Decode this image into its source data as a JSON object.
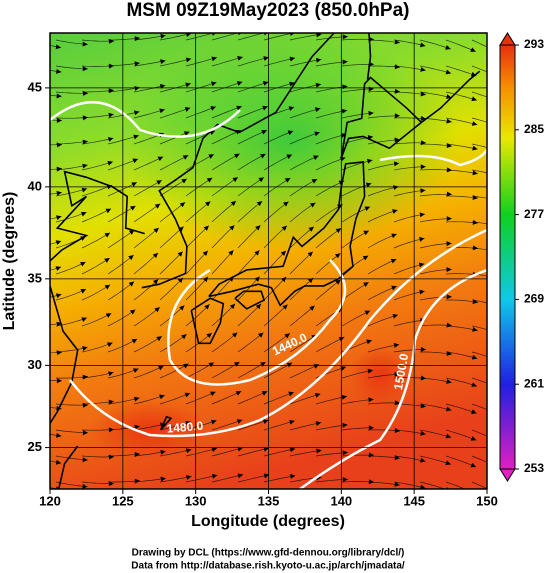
{
  "title": "MSM 09Z19May2023 (850.0hPa)",
  "x_axis": {
    "label": "Longitude (degrees)",
    "lim": [
      120,
      150
    ],
    "ticks": [
      120,
      125,
      130,
      135,
      140,
      145,
      150
    ]
  },
  "y_axis": {
    "label": "Latitude  (degrees)",
    "lim": [
      22.4,
      47.6
    ],
    "ticks": [
      25,
      30,
      35,
      40,
      45
    ]
  },
  "colorbar": {
    "lim": [
      253,
      293
    ],
    "ticks": [
      253,
      261,
      269,
      277,
      285,
      293
    ]
  },
  "contour_labels": [
    "1440.0",
    "1500.0",
    "1480.0"
  ],
  "footer": [
    "Drawing by DCL (https://www.gfd-dennou.org/library/dcl/)",
    "Data from http://database.rish.kyoto-u.ac.jp/arch/jmadata/"
  ]
}
